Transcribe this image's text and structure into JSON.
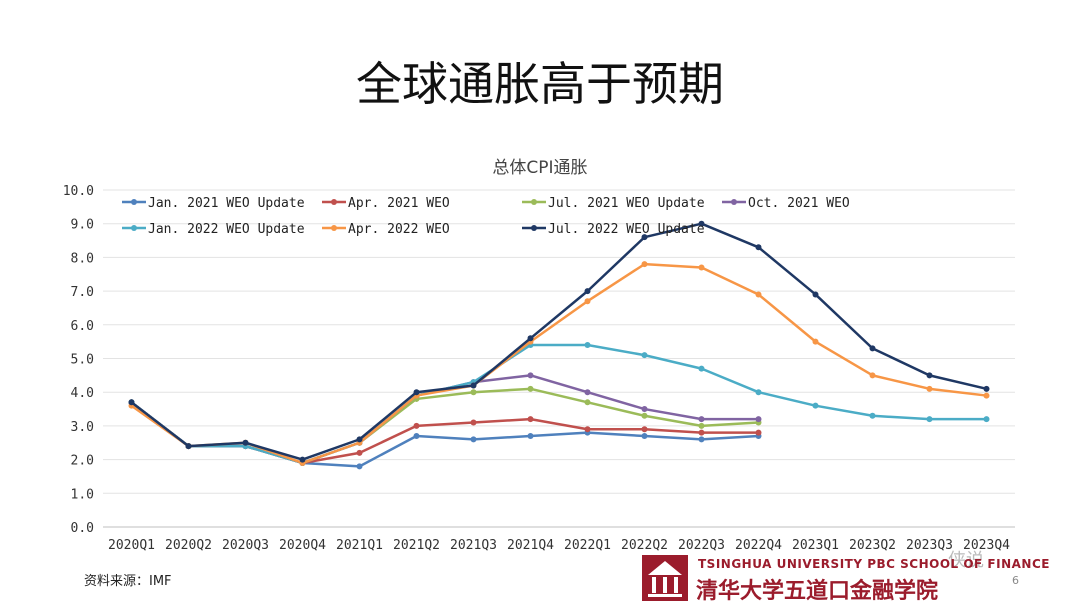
{
  "slide": {
    "title": "全球通胀高于预期",
    "source": "资料来源：IMF",
    "page_number": "6",
    "watermark": "侠说",
    "logo_en": "TSINGHUA UNIVERSITY PBC SCHOOL OF FINANCE",
    "logo_cn": "清华大学五道口金融学院"
  },
  "chart_data": {
    "type": "line",
    "title": "总体CPI通胀",
    "xlabel": "",
    "ylabel": "",
    "ylim": [
      0,
      10
    ],
    "yticks": [
      "0.0",
      "1.0",
      "2.0",
      "3.0",
      "4.0",
      "5.0",
      "6.0",
      "7.0",
      "8.0",
      "9.0",
      "10.0"
    ],
    "categories": [
      "2020Q1",
      "2020Q2",
      "2020Q3",
      "2020Q4",
      "2021Q1",
      "2021Q2",
      "2021Q3",
      "2021Q4",
      "2022Q1",
      "2022Q2",
      "2022Q3",
      "2022Q4",
      "2023Q1",
      "2023Q2",
      "2023Q3",
      "2023Q4"
    ],
    "legend_position": "top-left",
    "series": [
      {
        "name": "Jan. 2021 WEO Update",
        "color": "#4f81bd",
        "values": [
          3.7,
          2.4,
          2.4,
          1.9,
          1.8,
          2.7,
          2.6,
          2.7,
          2.8,
          2.7,
          2.6,
          2.7,
          null,
          null,
          null,
          null
        ]
      },
      {
        "name": "Apr. 2021 WEO",
        "color": "#c0504d",
        "values": [
          3.7,
          2.4,
          2.4,
          1.9,
          2.2,
          3.0,
          3.1,
          3.2,
          2.9,
          2.9,
          2.8,
          2.8,
          null,
          null,
          null,
          null
        ]
      },
      {
        "name": "Jul. 2021 WEO Update",
        "color": "#9bbb59",
        "values": [
          3.7,
          2.4,
          2.4,
          1.9,
          2.5,
          3.8,
          4.0,
          4.1,
          3.7,
          3.3,
          3.0,
          3.1,
          null,
          null,
          null,
          null
        ]
      },
      {
        "name": "Oct. 2021 WEO",
        "color": "#8064a2",
        "values": [
          3.7,
          2.4,
          2.4,
          1.9,
          2.5,
          3.9,
          4.3,
          4.5,
          4.0,
          3.5,
          3.2,
          3.2,
          null,
          null,
          null,
          null
        ]
      },
      {
        "name": "Jan. 2022 WEO Update",
        "color": "#4bacc6",
        "values": [
          3.7,
          2.4,
          2.4,
          1.9,
          2.5,
          3.9,
          4.3,
          5.4,
          5.4,
          5.1,
          4.7,
          4.0,
          3.6,
          3.3,
          3.2,
          3.2
        ]
      },
      {
        "name": "Apr. 2022 WEO",
        "color": "#f79646",
        "values": [
          3.6,
          2.4,
          2.5,
          1.9,
          2.5,
          3.9,
          4.2,
          5.5,
          6.7,
          7.8,
          7.7,
          6.9,
          5.5,
          4.5,
          4.1,
          3.9
        ]
      },
      {
        "name": "Jul. 2022 WEO Update",
        "color": "#1f3864",
        "values": [
          3.7,
          2.4,
          2.5,
          2.0,
          2.6,
          4.0,
          4.2,
          5.6,
          7.0,
          8.6,
          9.0,
          8.3,
          6.9,
          5.3,
          4.5,
          4.1
        ]
      }
    ]
  }
}
